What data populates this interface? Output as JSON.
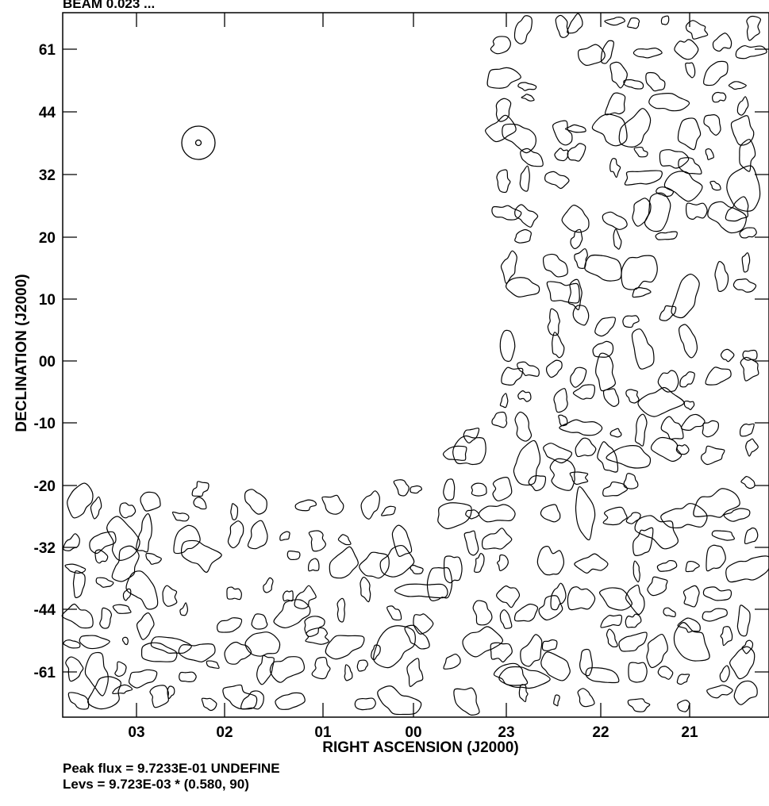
{
  "header_partial": "BEAM 0.023 ...",
  "chart_data": {
    "type": "contour",
    "xlabel": "RIGHT ASCENSION (J2000)",
    "ylabel": "DECLINATION (J2000)",
    "x_ticks": [
      "03",
      "02",
      "01",
      "00",
      "23",
      "22",
      "21"
    ],
    "y_ticks": [
      "61",
      "44",
      "32",
      "20",
      "10",
      "00",
      "-10",
      "-20",
      "-32",
      "-44",
      "-61"
    ],
    "grid": false,
    "beam_marker": "upper-left",
    "empty_region": "upper-left quadrant (no contours)",
    "peak_flux": "9.7233E-01",
    "contour_levels_base": "9.723E-03",
    "contour_levels": [
      0.58,
      90
    ]
  },
  "caption": {
    "peak_line": "Peak flux =  9.7233E-01 UNDEFINE",
    "levs_line": "Levs = 9.723E-03 * (0.580, 90)"
  }
}
